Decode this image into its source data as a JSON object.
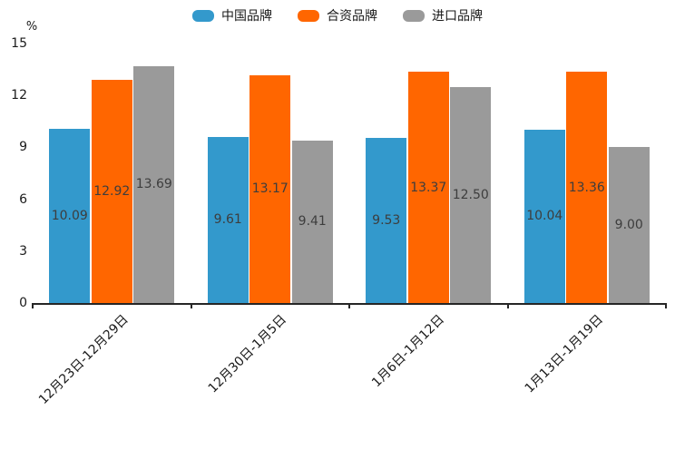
{
  "chart_data": {
    "type": "bar",
    "title": "",
    "ylabel": "%",
    "categories": [
      "12月23日-12月29日",
      "12月30日-1月5日",
      "1月6日-1月12日",
      "1月13日-1月19日"
    ],
    "series": [
      {
        "name": "中国品牌",
        "color": "#3399CC",
        "values": [
          10.09,
          9.61,
          9.53,
          10.04
        ]
      },
      {
        "name": "合资品牌",
        "color": "#FF6600",
        "values": [
          12.92,
          13.17,
          13.37,
          13.36
        ]
      },
      {
        "name": "进口品牌",
        "color": "#9A9A9A",
        "values": [
          13.69,
          9.41,
          12.5,
          9.0
        ]
      }
    ],
    "ylim": [
      0,
      15
    ],
    "yticks": [
      0,
      3,
      6,
      9,
      12,
      15
    ],
    "grid": false,
    "legend_position": "top",
    "value_labels": true,
    "value_label_decimals": 2,
    "axis_color": "#262626",
    "tick_label_color": "#1a1a1a",
    "value_label_color": "#3d3d3d"
  }
}
